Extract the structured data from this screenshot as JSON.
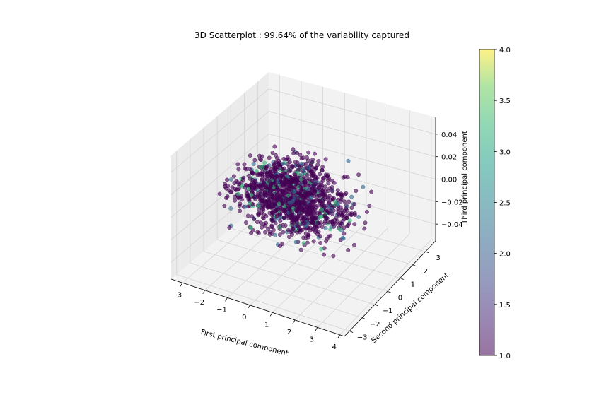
{
  "chart_data": {
    "type": "scatter",
    "title": "3D Scatterplot : 99.64% of the variability captured",
    "xlabel": "First principal component",
    "ylabel": "Second principal component",
    "zlabel": "Third principal component",
    "x_ticks": [
      "−3",
      "−2",
      "−1",
      "0",
      "1",
      "2",
      "3",
      "4"
    ],
    "y_ticks": [
      "−3",
      "−2",
      "−1",
      "0",
      "1",
      "2",
      "3"
    ],
    "z_ticks": [
      "−0.04",
      "−0.02",
      "0.00",
      "0.02",
      "0.04"
    ],
    "xlim": [
      -3.5,
      4.2
    ],
    "ylim": [
      -3.4,
      3.8
    ],
    "zlim": [
      -0.055,
      0.055
    ],
    "colorbar": {
      "min": 1.0,
      "max": 4.0,
      "ticks": [
        "1.0",
        "1.5",
        "2.0",
        "2.5",
        "3.0",
        "3.5",
        "4.0"
      ],
      "colormap": "viridis",
      "alpha": 0.55
    },
    "grid": true,
    "colors": {
      "class_1": "#440154",
      "class_2": "#31688e",
      "class_3": "#35b779",
      "class_4": "#fde725",
      "pane": "#f2f2f2",
      "pane_side": "#ebebeb",
      "grid": "#d4d4d4"
    }
  }
}
